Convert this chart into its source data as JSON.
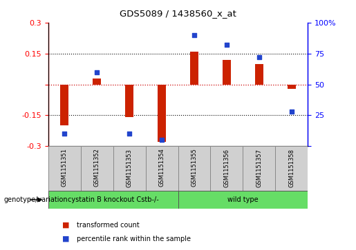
{
  "title": "GDS5089 / 1438560_x_at",
  "samples": [
    "GSM1151351",
    "GSM1151352",
    "GSM1151353",
    "GSM1151354",
    "GSM1151355",
    "GSM1151356",
    "GSM1151357",
    "GSM1151358"
  ],
  "transformed_count": [
    -0.2,
    0.03,
    -0.16,
    -0.28,
    0.16,
    0.12,
    0.1,
    -0.02
  ],
  "percentile_rank": [
    10,
    60,
    10,
    5,
    90,
    82,
    72,
    28
  ],
  "bar_color": "#cc2200",
  "dot_color": "#2244cc",
  "ylim": [
    -0.3,
    0.3
  ],
  "yticks_left": [
    -0.3,
    -0.15,
    0.0,
    0.15,
    0.3
  ],
  "yticks_right": [
    0,
    25,
    50,
    75,
    100
  ],
  "hline_color": "#cc0000",
  "dotted_color": "black",
  "group1_label": "cystatin B knockout Cstb-/-",
  "group2_label": "wild type",
  "group1_indices": [
    0,
    1,
    2,
    3
  ],
  "group2_indices": [
    4,
    5,
    6,
    7
  ],
  "group_color": "#66dd66",
  "label_bar": "transformed count",
  "label_dot": "percentile rank within the sample",
  "genotype_label": "genotype/variation",
  "bar_width": 0.25,
  "dot_size": 18
}
